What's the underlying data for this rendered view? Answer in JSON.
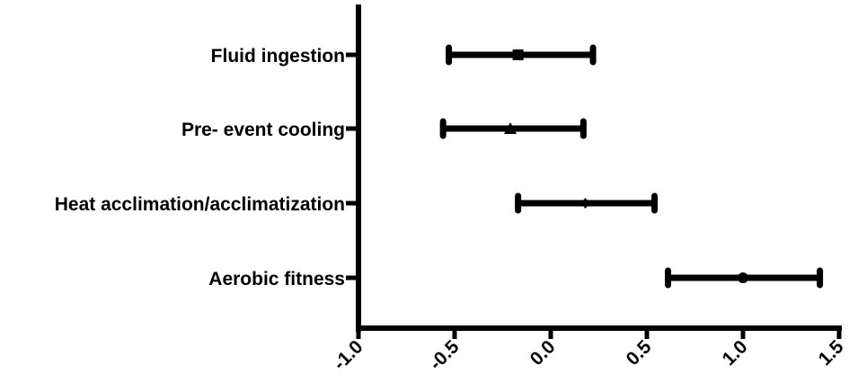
{
  "chart_data": {
    "type": "forest",
    "title": "",
    "xlabel": "",
    "ylabel": "",
    "xlim": [
      -1.0,
      1.5
    ],
    "xticks": [
      -1.0,
      -0.5,
      0.0,
      0.5,
      1.0,
      1.5
    ],
    "xtick_labels": [
      "-1.0",
      "-0.5",
      "0.0",
      "0.5",
      "1.0",
      "1.5"
    ],
    "grid": false,
    "legend": "none",
    "series": [
      {
        "category": "Fluid ingestion",
        "estimate": -0.17,
        "lower": -0.53,
        "upper": 0.22,
        "marker": "square"
      },
      {
        "category": "Pre- event cooling",
        "estimate": -0.21,
        "lower": -0.56,
        "upper": 0.17,
        "marker": "triangle"
      },
      {
        "category": "Heat acclimation/acclimatization",
        "estimate": 0.18,
        "lower": -0.17,
        "upper": 0.54,
        "marker": "diamond"
      },
      {
        "category": "Aerobic fitness",
        "estimate": 1.0,
        "lower": 0.61,
        "upper": 1.4,
        "marker": "circle"
      }
    ],
    "colors": {
      "ink": "#000000",
      "background": "#ffffff"
    }
  }
}
